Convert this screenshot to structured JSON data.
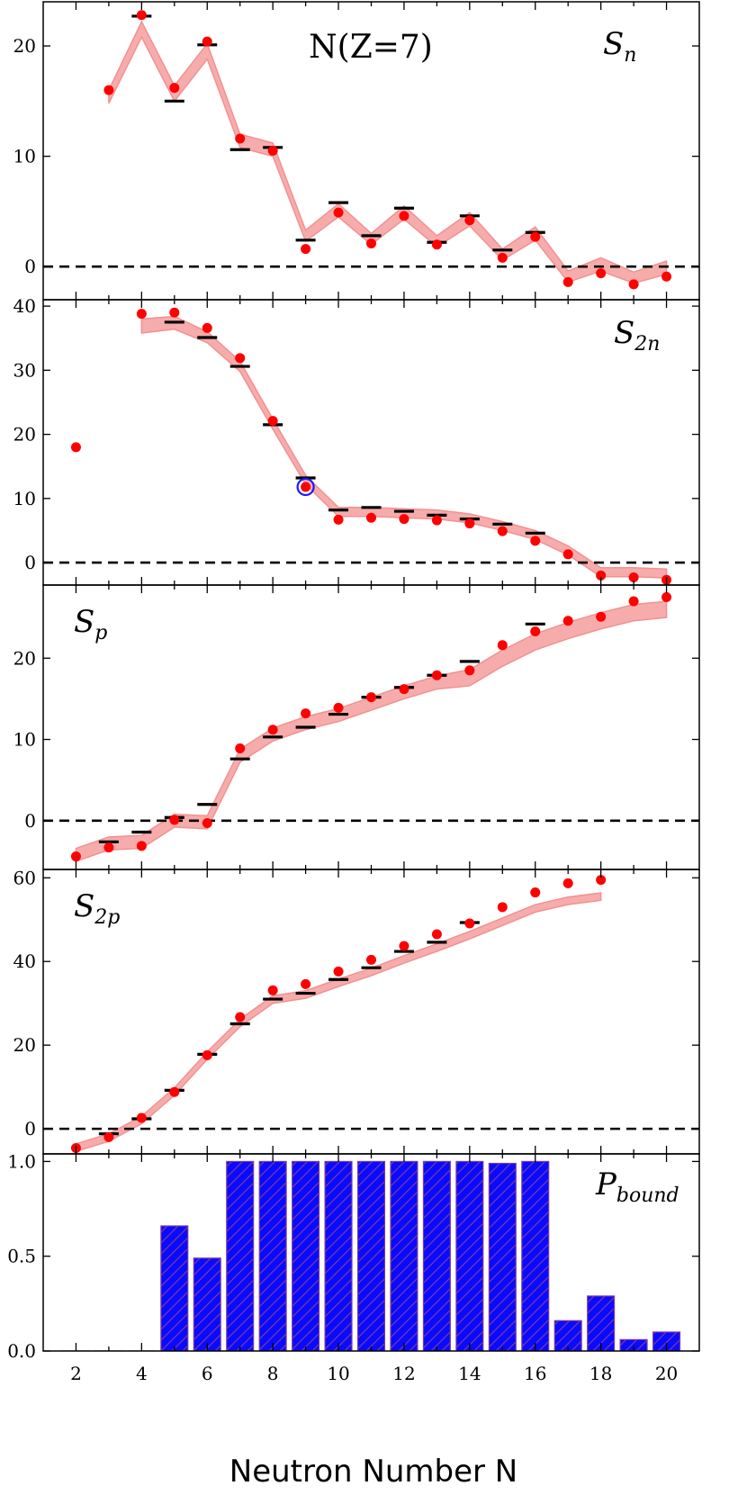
{
  "chart_data": {
    "type": "multi-panel",
    "title": "N(Z=7)",
    "xlabel": "Neutron Number N",
    "x_ticks": [
      2,
      4,
      6,
      8,
      10,
      12,
      14,
      16,
      18,
      20
    ],
    "xlim": [
      1,
      21
    ],
    "panels": [
      {
        "id": "Sn",
        "label_main": "S",
        "label_sub": "n",
        "ylim": [
          -3,
          24
        ],
        "yticks": [
          0,
          10,
          20
        ],
        "zero_line": true,
        "band": {
          "x": [
            3,
            4,
            5,
            6,
            7,
            8,
            9,
            10,
            11,
            12,
            13,
            14,
            15,
            16,
            17,
            18,
            19,
            20
          ],
          "lower": [
            14.8,
            20.8,
            15.0,
            18.8,
            10.8,
            10.0,
            2.3,
            4.5,
            2.0,
            4.3,
            1.8,
            3.7,
            0.6,
            2.4,
            -1.4,
            -0.4,
            -1.5,
            -0.7
          ],
          "upper": [
            16.0,
            22.2,
            16.4,
            20.2,
            12.0,
            11.2,
            3.3,
            5.7,
            3.0,
            5.5,
            2.8,
            4.9,
            1.6,
            3.6,
            -0.4,
            0.8,
            -0.5,
            0.5
          ]
        },
        "experiment": {
          "x": [
            3,
            4,
            5,
            6,
            7,
            8,
            9,
            10,
            11,
            12,
            13,
            14,
            15,
            16
          ],
          "y": [
            null,
            22.7,
            15.0,
            20.1,
            10.6,
            10.8,
            2.4,
            5.8,
            2.8,
            5.3,
            2.2,
            4.6,
            1.5,
            3.1
          ]
        },
        "prediction": {
          "x": [
            3,
            4,
            5,
            6,
            7,
            8,
            9,
            10,
            11,
            12,
            13,
            14,
            15,
            16,
            17,
            18,
            19,
            20
          ],
          "y": [
            16.0,
            22.8,
            16.2,
            20.4,
            11.6,
            10.5,
            1.6,
            4.9,
            2.1,
            4.6,
            2.0,
            4.2,
            0.8,
            2.7,
            -1.4,
            -0.6,
            -1.6,
            -0.9
          ]
        }
      },
      {
        "id": "S2n",
        "label_main": "S",
        "label_sub": "2n",
        "ylim": [
          -3.5,
          41
        ],
        "yticks": [
          0,
          10,
          20,
          30,
          40
        ],
        "zero_line": true,
        "band": {
          "x": [
            4,
            5,
            6,
            7,
            8,
            9,
            10,
            11,
            12,
            13,
            14,
            15,
            16,
            17,
            18,
            19,
            20
          ],
          "lower": [
            35.8,
            36.4,
            34.3,
            29.8,
            20.8,
            12.2,
            7.2,
            7.2,
            7.0,
            6.8,
            6.2,
            5.0,
            3.6,
            1.2,
            -2.2,
            -2.2,
            -2.4
          ],
          "upper": [
            38.0,
            38.4,
            36.0,
            31.4,
            22.4,
            13.6,
            8.6,
            8.6,
            8.4,
            8.2,
            7.6,
            6.4,
            5.0,
            2.6,
            -0.8,
            -0.8,
            -1.0
          ]
        },
        "experiment": {
          "x": [
            5,
            6,
            7,
            8,
            9,
            10,
            11,
            12,
            13,
            14,
            15,
            16
          ],
          "y": [
            37.5,
            35.1,
            30.6,
            21.5,
            13.2,
            8.2,
            8.6,
            8.0,
            7.4,
            6.8,
            6.0,
            4.6
          ]
        },
        "prediction": {
          "x": [
            2,
            4,
            5,
            6,
            7,
            8,
            9,
            10,
            11,
            12,
            13,
            14,
            15,
            16,
            17,
            18,
            19,
            20
          ],
          "y": [
            18.0,
            38.8,
            39.0,
            36.6,
            31.9,
            22.1,
            11.8,
            6.7,
            7.0,
            6.8,
            6.6,
            6.1,
            4.9,
            3.4,
            1.3,
            -2.0,
            -2.3,
            -2.7
          ]
        },
        "highlight_x": 9,
        "highlight_y": 11.8
      },
      {
        "id": "Sp",
        "label_main": "S",
        "label_sub": "p",
        "ylim": [
          -6,
          29
        ],
        "yticks": [
          0,
          10,
          20
        ],
        "zero_line": true,
        "band": {
          "x": [
            2,
            3,
            4,
            5,
            6,
            7,
            8,
            9,
            10,
            11,
            12,
            13,
            14,
            15,
            16,
            17,
            18,
            19,
            20
          ],
          "lower": [
            -5.0,
            -3.6,
            -3.4,
            -0.8,
            -1.0,
            7.2,
            9.8,
            11.2,
            12.2,
            13.6,
            15.0,
            16.2,
            16.6,
            19.0,
            21.0,
            22.4,
            23.6,
            24.6,
            25.0
          ],
          "upper": [
            -3.4,
            -2.0,
            -1.8,
            0.8,
            0.6,
            8.8,
            11.4,
            12.8,
            13.8,
            15.2,
            16.6,
            17.8,
            18.6,
            21.0,
            23.0,
            24.4,
            25.6,
            26.6,
            27.0
          ]
        },
        "experiment": {
          "x": [
            3,
            4,
            5,
            6,
            7,
            8,
            9,
            10,
            11,
            12,
            13,
            14,
            16
          ],
          "y": [
            -2.6,
            -1.4,
            0.4,
            2.0,
            7.6,
            10.3,
            11.5,
            13.1,
            15.2,
            16.4,
            17.9,
            19.6,
            24.2
          ]
        },
        "prediction": {
          "x": [
            2,
            3,
            4,
            5,
            6,
            7,
            8,
            9,
            10,
            11,
            12,
            13,
            14,
            15,
            16,
            17,
            18,
            19,
            20
          ],
          "y": [
            -4.4,
            -3.3,
            -3.1,
            0.1,
            -0.3,
            8.9,
            11.2,
            13.2,
            13.9,
            15.2,
            16.2,
            17.9,
            18.5,
            21.6,
            23.3,
            24.6,
            25.1,
            27.0,
            27.5
          ]
        }
      },
      {
        "id": "S2p",
        "label_main": "S",
        "label_sub": "2p",
        "ylim": [
          -6,
          62
        ],
        "yticks": [
          0,
          20,
          40,
          60
        ],
        "zero_line": true,
        "band": {
          "x": [
            2,
            3,
            4,
            5,
            6,
            7,
            8,
            9,
            10,
            11,
            12,
            13,
            14,
            15,
            16,
            17,
            18
          ],
          "lower": [
            -5.4,
            -3.0,
            1.2,
            8.0,
            16.6,
            24.4,
            30.0,
            31.2,
            34.0,
            36.6,
            39.6,
            42.4,
            45.4,
            48.6,
            51.8,
            53.6,
            54.6
          ],
          "upper": [
            -3.6,
            -1.2,
            3.0,
            9.8,
            18.4,
            26.2,
            31.8,
            33.0,
            35.8,
            38.4,
            41.4,
            44.2,
            47.2,
            50.4,
            53.6,
            55.4,
            56.4
          ]
        },
        "experiment": {
          "x": [
            3,
            4,
            5,
            6,
            7,
            8,
            9,
            10,
            11,
            12,
            13,
            14
          ],
          "y": [
            -1.2,
            2.4,
            9.2,
            17.8,
            25.1,
            31.0,
            32.4,
            35.7,
            38.5,
            42.4,
            44.6,
            49.3
          ]
        },
        "prediction": {
          "x": [
            2,
            3,
            4,
            5,
            6,
            7,
            8,
            9,
            10,
            11,
            12,
            13,
            14,
            15,
            16,
            17,
            18
          ],
          "y": [
            -4.6,
            -2.0,
            2.6,
            8.8,
            17.6,
            26.7,
            33.1,
            34.6,
            37.6,
            40.4,
            43.7,
            46.5,
            49.1,
            53.0,
            56.5,
            58.7,
            59.5
          ]
        }
      },
      {
        "id": "Pbound",
        "label_main": "P",
        "label_sub": "bound",
        "type": "bar",
        "ylim": [
          0,
          1.04
        ],
        "yticks": [
          0.0,
          0.5,
          1.0
        ],
        "ytick_labels": [
          "0.0",
          "0.5",
          "1.0"
        ],
        "bars": {
          "x": [
            2,
            3,
            4,
            5,
            6,
            7,
            8,
            9,
            10,
            11,
            12,
            13,
            14,
            15,
            16,
            17,
            18,
            19,
            20
          ],
          "values": [
            0.0,
            0.0,
            0.0,
            0.66,
            0.49,
            1.0,
            1.0,
            1.0,
            1.0,
            1.0,
            1.0,
            1.0,
            1.0,
            0.99,
            1.0,
            0.16,
            0.29,
            0.06,
            0.1
          ]
        }
      }
    ]
  },
  "colors": {
    "band": "#f7a8a8",
    "band_edge": "#f28c8c",
    "prediction": "#ff0000",
    "experiment": "#000000",
    "bar_fill": "#0a0aff",
    "bar_edge": "#7a3aa0",
    "highlight": "#1a1aff"
  }
}
